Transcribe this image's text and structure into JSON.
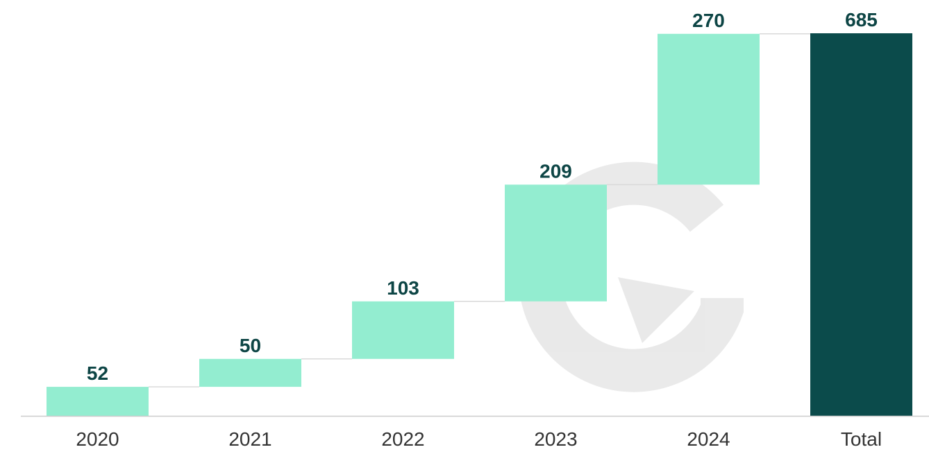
{
  "chart_data": {
    "type": "waterfall",
    "categories": [
      "2020",
      "2021",
      "2022",
      "2023",
      "2024",
      "Total"
    ],
    "values": [
      52,
      50,
      103,
      209,
      270,
      685
    ],
    "total_index": 5,
    "value_labels": [
      "52",
      "50",
      "103",
      "209",
      "270",
      "685"
    ],
    "ylim": [
      0,
      685
    ],
    "grid": false,
    "legend": "none"
  },
  "colors": {
    "increment": "#93edd0",
    "total": "#0b4b4b",
    "label": "#0d4545",
    "tick_label": "#333333",
    "axis": "#cccccc",
    "connector": "#d9d9d9",
    "watermark": "#e6e6e6"
  },
  "watermark": {
    "icon": "g-logo-icon"
  }
}
